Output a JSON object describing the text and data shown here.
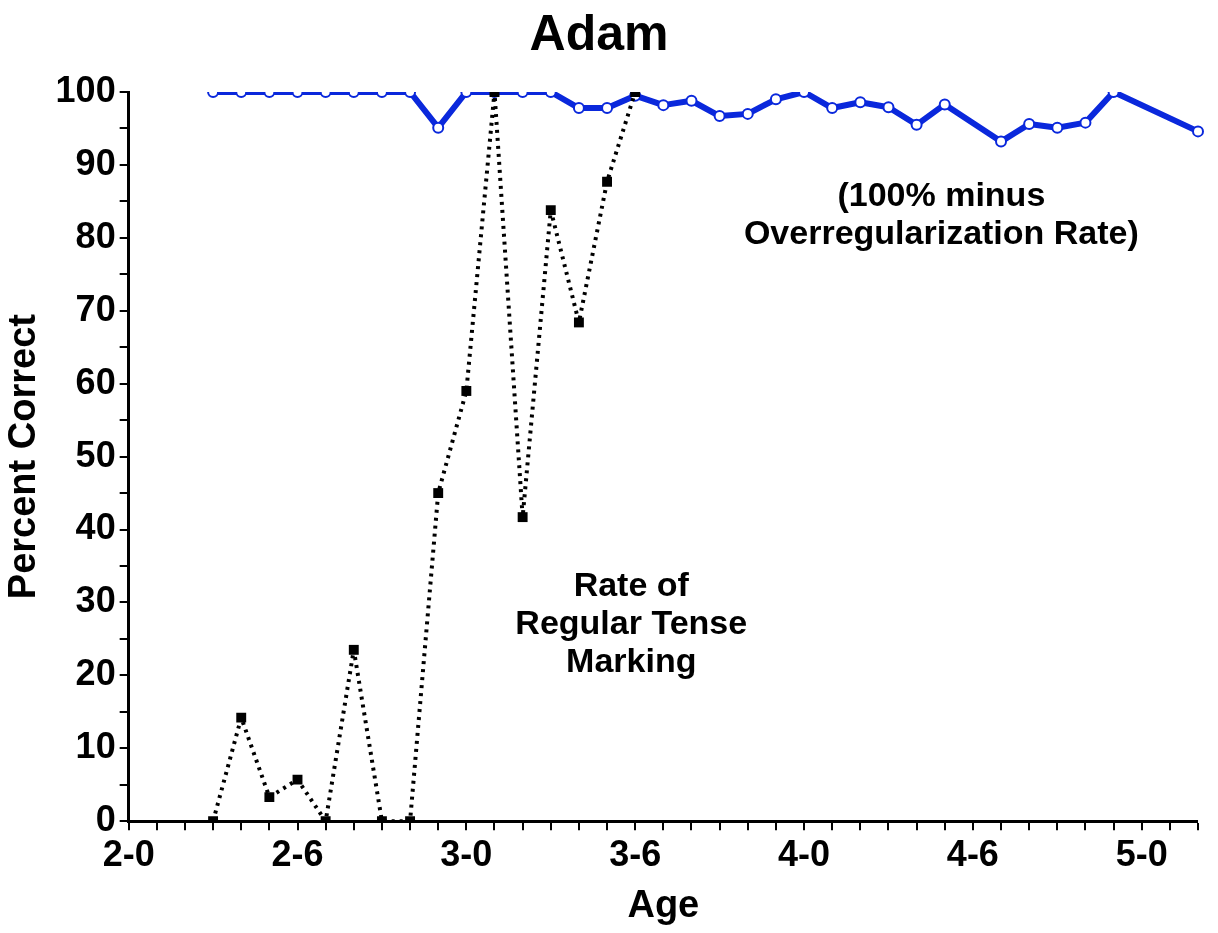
{
  "chart_data": {
    "type": "line",
    "title": "Adam",
    "xlabel": "Age",
    "ylabel": "Percent Correct",
    "categories": [
      "2-0",
      null,
      null,
      null,
      null,
      null,
      "2-6",
      null,
      null,
      null,
      null,
      null,
      "3-0",
      null,
      null,
      null,
      null,
      null,
      "3-6",
      null,
      null,
      null,
      null,
      null,
      "4-0",
      null,
      null,
      null,
      null,
      null,
      "4-6",
      null,
      null,
      null,
      null,
      null,
      "5-0",
      null,
      null
    ],
    "ylim": [
      0,
      100
    ],
    "yticks": [
      0,
      {
        "value": 5,
        "label": null
      },
      10,
      {
        "value": 15,
        "label": null
      },
      20,
      {
        "value": 25,
        "label": null
      },
      30,
      {
        "value": 35,
        "label": null
      },
      40,
      {
        "value": 45,
        "label": null
      },
      50,
      {
        "value": 55,
        "label": null
      },
      60,
      {
        "value": 65,
        "label": null
      },
      70,
      {
        "value": 75,
        "label": null
      },
      80,
      {
        "value": 85,
        "label": null
      },
      90,
      {
        "value": 95,
        "label": null
      },
      100
    ],
    "grid": false,
    "legend": false,
    "series": [
      {
        "color": "#0a28dc",
        "marker": "circle",
        "line_style": "solid",
        "values": [
          null,
          null,
          null,
          100,
          100,
          100,
          100,
          100,
          100,
          100,
          100,
          95.1,
          100,
          100,
          100,
          100,
          97.8,
          97.8,
          99.5,
          98.2,
          98.8,
          96.7,
          97,
          99,
          100,
          97.8,
          98.6,
          97.9,
          95.5,
          98.3,
          null,
          93.2,
          95.6,
          95.1,
          95.8,
          100,
          null,
          null,
          94.6
        ]
      },
      {
        "color": "#000000",
        "marker": "square",
        "line_style": "dotted",
        "values": [
          null,
          null,
          null,
          0,
          14.2,
          3.3,
          5.7,
          0,
          23.5,
          0,
          0,
          45,
          59,
          100,
          41.7,
          83.8,
          68.4,
          87.7,
          100,
          null,
          null,
          null,
          null,
          null,
          null,
          null,
          null,
          null,
          null,
          null,
          null,
          null,
          null,
          null,
          null,
          null,
          null,
          null,
          null
        ]
      }
    ],
    "annotations": [
      "(100% minus\nOverregularization Rate)",
      "Rate of\nRegular Tense\nMarking"
    ]
  }
}
